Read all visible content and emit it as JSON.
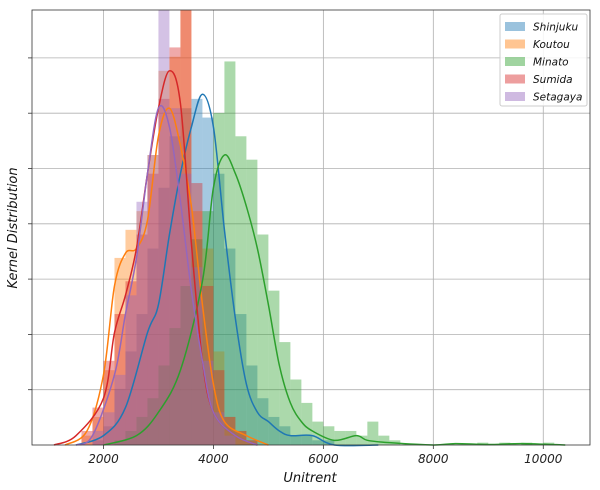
{
  "chart_data": {
    "type": "histogram",
    "xlabel": "Unitrent",
    "ylabel": "Kernel Distribution",
    "xlim": [
      700,
      10850
    ],
    "xticks": [
      2000,
      4000,
      6000,
      8000,
      10000
    ],
    "xtick_labels": [
      "2000",
      "4000",
      "6000",
      "8000",
      "10000"
    ],
    "y_ticks_unlabeled": 8,
    "grid": true,
    "legend_position": "top-right",
    "density_max": 0.00093,
    "series": [
      {
        "name": "Shinjuku",
        "color": "#1f77b4",
        "bins": [
          [
            1800,
            1e-05
          ],
          [
            2000,
            4e-05
          ],
          [
            2200,
            0.00012
          ],
          [
            2400,
            0.0002
          ],
          [
            2600,
            0.00028
          ],
          [
            2800,
            0.00042
          ],
          [
            3000,
            0.00055
          ],
          [
            3200,
            0.00066
          ],
          [
            3400,
            0.00072
          ],
          [
            3600,
            0.00074
          ],
          [
            3800,
            0.0007
          ],
          [
            4000,
            0.00058
          ],
          [
            4200,
            0.00042
          ],
          [
            4400,
            0.00028
          ],
          [
            4600,
            0.00017
          ],
          [
            4800,
            0.0001
          ],
          [
            5000,
            6e-05
          ],
          [
            5200,
            4e-05
          ],
          [
            5400,
            2e-05
          ],
          [
            5600,
            2e-05
          ],
          [
            5800,
            1e-05
          ],
          [
            6000,
            1e-05
          ]
        ],
        "kde": [
          [
            1500,
            0.0
          ],
          [
            2000,
            2e-05
          ],
          [
            2400,
            8e-05
          ],
          [
            2800,
            0.00024
          ],
          [
            3000,
            0.0003
          ],
          [
            3200,
            0.00045
          ],
          [
            3400,
            0.00058
          ],
          [
            3600,
            0.00068
          ],
          [
            3800,
            0.00075
          ],
          [
            4000,
            0.00068
          ],
          [
            4200,
            0.00046
          ],
          [
            4400,
            0.00027
          ],
          [
            4600,
            0.00013
          ],
          [
            4800,
            7e-05
          ],
          [
            5000,
            5e-05
          ],
          [
            5200,
            3e-05
          ],
          [
            5400,
            2e-05
          ],
          [
            5800,
            2e-05
          ],
          [
            6200,
            0.0
          ],
          [
            7000,
            0.0
          ]
        ]
      },
      {
        "name": "Koutou",
        "color": "#ff7f0e",
        "bins": [
          [
            1600,
            2e-05
          ],
          [
            1800,
            6e-05
          ],
          [
            2000,
            0.00016
          ],
          [
            2200,
            0.0004
          ],
          [
            2400,
            0.00046
          ],
          [
            2600,
            0.0005
          ],
          [
            2800,
            0.00062
          ],
          [
            3000,
            0.0008
          ],
          [
            3200,
            0.00083
          ],
          [
            3400,
            0.00093
          ],
          [
            3600,
            0.0005
          ],
          [
            3800,
            0.00042
          ],
          [
            4000,
            0.0002
          ],
          [
            4200,
            6e-05
          ],
          [
            4400,
            3e-05
          ],
          [
            4600,
            1e-05
          ]
        ],
        "kde": [
          [
            1300,
            0.0
          ],
          [
            1700,
            3e-05
          ],
          [
            2000,
            0.00015
          ],
          [
            2200,
            0.00034
          ],
          [
            2400,
            0.00041
          ],
          [
            2600,
            0.00042
          ],
          [
            2800,
            0.00048
          ],
          [
            3000,
            0.00066
          ],
          [
            3200,
            0.00072
          ],
          [
            3400,
            0.00064
          ],
          [
            3600,
            0.00051
          ],
          [
            3800,
            0.0003
          ],
          [
            4000,
            0.00013
          ],
          [
            4200,
            5e-05
          ],
          [
            4600,
            2e-05
          ],
          [
            5000,
            0.0
          ]
        ]
      },
      {
        "name": "Minato",
        "color": "#2ca02c",
        "bins": [
          [
            2200,
            1e-05
          ],
          [
            2400,
            3e-05
          ],
          [
            2600,
            6e-05
          ],
          [
            2800,
            0.0001
          ],
          [
            3000,
            0.00017
          ],
          [
            3200,
            0.00025
          ],
          [
            3400,
            0.00034
          ],
          [
            3600,
            0.00044
          ],
          [
            3800,
            0.0005
          ],
          [
            4000,
            0.00071
          ],
          [
            4200,
            0.00082
          ],
          [
            4400,
            0.00066
          ],
          [
            4600,
            0.00061
          ],
          [
            4800,
            0.00045
          ],
          [
            5000,
            0.00033
          ],
          [
            5200,
            0.00022
          ],
          [
            5400,
            0.00014
          ],
          [
            5600,
            9e-05
          ],
          [
            5800,
            5e-05
          ],
          [
            6000,
            4e-05
          ],
          [
            6200,
            3e-05
          ],
          [
            6400,
            3e-05
          ],
          [
            6600,
            2e-05
          ],
          [
            6800,
            5e-05
          ],
          [
            7000,
            2e-05
          ],
          [
            7200,
            1e-05
          ],
          [
            8800,
            5e-06
          ],
          [
            9200,
            5e-06
          ],
          [
            9600,
            5e-06
          ],
          [
            10000,
            5e-06
          ]
        ],
        "kde": [
          [
            2000,
            0.0
          ],
          [
            2600,
            2e-05
          ],
          [
            3000,
            7e-05
          ],
          [
            3400,
            0.00016
          ],
          [
            3800,
            0.00035
          ],
          [
            4000,
            0.00055
          ],
          [
            4200,
            0.00062
          ],
          [
            4400,
            0.00058
          ],
          [
            4600,
            0.00051
          ],
          [
            4800,
            0.00042
          ],
          [
            5000,
            0.0003
          ],
          [
            5200,
            0.00017
          ],
          [
            5400,
            9e-05
          ],
          [
            5600,
            5e-05
          ],
          [
            5800,
            3e-05
          ],
          [
            6200,
            1e-05
          ],
          [
            6600,
            2e-05
          ],
          [
            6800,
            1e-05
          ],
          [
            7200,
            5e-06
          ],
          [
            8000,
            0.0
          ],
          [
            8400,
            3e-06
          ],
          [
            9000,
            1e-06
          ],
          [
            9600,
            3e-06
          ],
          [
            10400,
            0.0
          ]
        ]
      },
      {
        "name": "Sumida",
        "color": "#d62728",
        "bins": [
          [
            1600,
            3e-05
          ],
          [
            1800,
            8e-05
          ],
          [
            2000,
            0.00018
          ],
          [
            2200,
            0.00028
          ],
          [
            2400,
            0.00035
          ],
          [
            2600,
            0.00045
          ],
          [
            2800,
            0.00058
          ],
          [
            3000,
            0.00074
          ],
          [
            3200,
            0.00085
          ],
          [
            3400,
            0.00093
          ],
          [
            3600,
            0.00056
          ],
          [
            3800,
            0.00034
          ],
          [
            4000,
            0.00016
          ],
          [
            4200,
            6e-05
          ],
          [
            4400,
            3e-05
          ],
          [
            4600,
            1e-05
          ]
        ],
        "kde": [
          [
            1100,
            0.0
          ],
          [
            1500,
            2e-05
          ],
          [
            2000,
            0.0001
          ],
          [
            2200,
            0.00024
          ],
          [
            2400,
            0.00032
          ],
          [
            2600,
            0.00042
          ],
          [
            2800,
            0.00058
          ],
          [
            3000,
            0.00072
          ],
          [
            3200,
            0.0008
          ],
          [
            3400,
            0.00073
          ],
          [
            3600,
            0.00043
          ],
          [
            3800,
            0.00018
          ],
          [
            4000,
            7e-05
          ],
          [
            4400,
            2e-05
          ],
          [
            4800,
            0.0
          ]
        ]
      },
      {
        "name": "Setagaya",
        "color": "#9467bd",
        "bins": [
          [
            1800,
            3e-05
          ],
          [
            2000,
            7e-05
          ],
          [
            2200,
            0.00015
          ],
          [
            2400,
            0.00032
          ],
          [
            2600,
            0.00052
          ],
          [
            2800,
            0.00062
          ],
          [
            3000,
            0.00093
          ],
          [
            3200,
            0.00072
          ],
          [
            3400,
            0.00058
          ],
          [
            3600,
            0.00038
          ],
          [
            3800,
            0.00018
          ],
          [
            4000,
            7e-05
          ],
          [
            4200,
            2e-05
          ]
        ],
        "kde": [
          [
            1500,
            0.0
          ],
          [
            1800,
            2e-05
          ],
          [
            2200,
            0.00015
          ],
          [
            2400,
            0.00028
          ],
          [
            2600,
            0.0004
          ],
          [
            2800,
            0.00058
          ],
          [
            3000,
            0.00072
          ],
          [
            3200,
            0.00068
          ],
          [
            3400,
            0.00052
          ],
          [
            3600,
            0.00033
          ],
          [
            3800,
            0.00018
          ],
          [
            4000,
            7e-05
          ],
          [
            4400,
            2e-05
          ],
          [
            4800,
            0.0
          ]
        ]
      }
    ]
  }
}
